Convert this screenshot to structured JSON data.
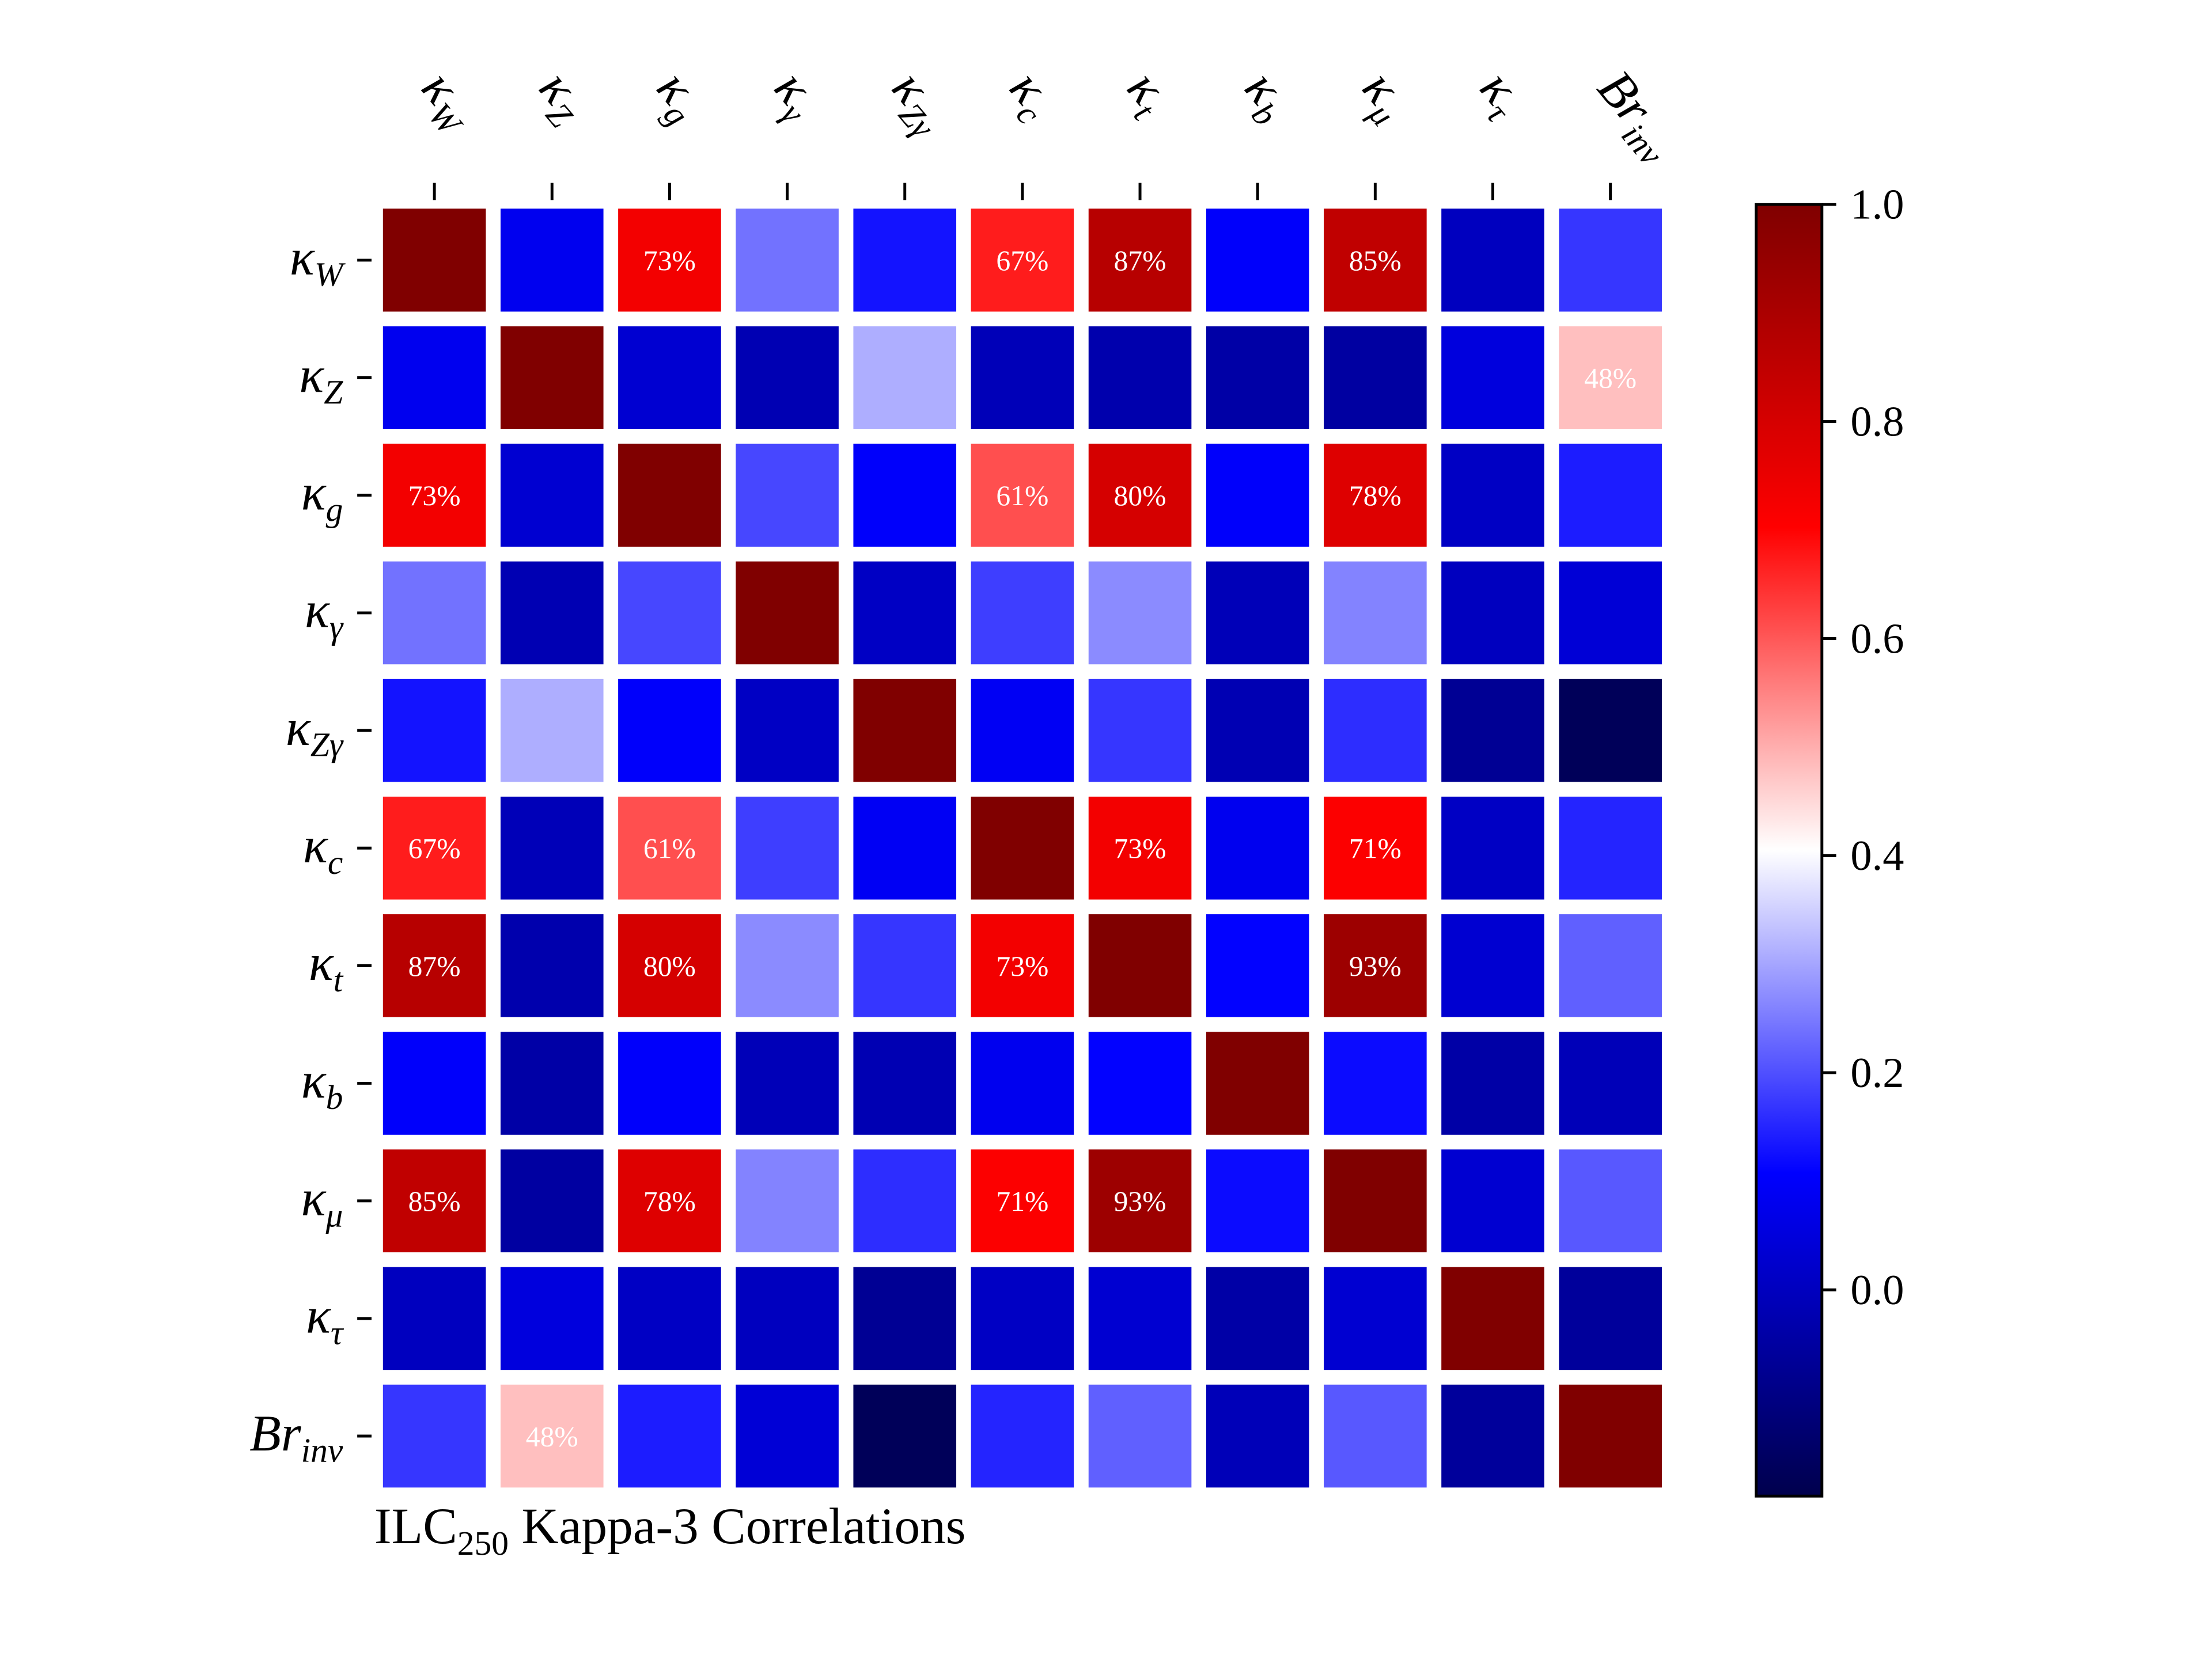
{
  "chart_data": {
    "type": "heatmap",
    "title": {
      "main": "ILC",
      "sub": "250",
      "rest": " Kappa-3 Correlations"
    },
    "categories": [
      {
        "main": "κ",
        "sub": "W"
      },
      {
        "main": "κ",
        "sub": "Z"
      },
      {
        "main": "κ",
        "sub": "g"
      },
      {
        "main": "κ",
        "sub": "γ"
      },
      {
        "main": "κ",
        "sub": "Zγ"
      },
      {
        "main": "κ",
        "sub": "c"
      },
      {
        "main": "κ",
        "sub": "t"
      },
      {
        "main": "κ",
        "sub": "b"
      },
      {
        "main": "κ",
        "sub": "μ"
      },
      {
        "main": "κ",
        "sub": "τ"
      },
      {
        "main": "Br",
        "sub": "inv"
      }
    ],
    "values": [
      [
        1,
        0.08,
        0.73,
        0.24,
        0.13,
        0.67,
        0.87,
        0.1,
        0.85,
        0.0,
        0.17
      ],
      [
        0.08,
        1,
        0.03,
        -0.02,
        0.31,
        -0.01,
        -0.03,
        -0.04,
        -0.05,
        0.05,
        0.48
      ],
      [
        0.73,
        0.03,
        1,
        0.19,
        0.1,
        0.61,
        0.8,
        0.1,
        0.78,
        0.01,
        0.14
      ],
      [
        0.24,
        -0.02,
        0.19,
        1,
        0.01,
        0.18,
        0.27,
        -0.01,
        0.26,
        0.0,
        0.04
      ],
      [
        0.13,
        0.31,
        0.1,
        0.01,
        1,
        0.09,
        0.17,
        -0.02,
        0.16,
        -0.07,
        -0.17
      ],
      [
        0.67,
        -0.01,
        0.61,
        0.18,
        0.09,
        1,
        0.73,
        0.08,
        0.71,
        0.01,
        0.15
      ],
      [
        0.87,
        -0.03,
        0.8,
        0.27,
        0.17,
        0.73,
        1,
        0.11,
        0.93,
        0.03,
        0.22
      ],
      [
        0.1,
        -0.04,
        0.1,
        -0.01,
        -0.02,
        0.08,
        0.11,
        1,
        0.12,
        -0.04,
        -0.01
      ],
      [
        0.85,
        -0.05,
        0.78,
        0.26,
        0.16,
        0.71,
        0.93,
        0.12,
        1,
        0.03,
        0.21
      ],
      [
        0.0,
        0.05,
        0.01,
        0.0,
        -0.07,
        0.01,
        0.03,
        -0.04,
        0.03,
        1,
        -0.06
      ],
      [
        0.17,
        0.48,
        0.14,
        0.04,
        -0.17,
        0.15,
        0.22,
        -0.01,
        0.21,
        -0.06,
        1
      ]
    ],
    "value_labels": [
      [
        null,
        null,
        "73%",
        null,
        null,
        "67%",
        "87%",
        null,
        "85%",
        null,
        null
      ],
      [
        null,
        null,
        null,
        null,
        null,
        null,
        null,
        null,
        null,
        null,
        "48%"
      ],
      [
        "73%",
        null,
        null,
        null,
        null,
        "61%",
        "80%",
        null,
        "78%",
        null,
        null
      ],
      [
        null,
        null,
        null,
        null,
        null,
        null,
        null,
        null,
        null,
        null,
        null
      ],
      [
        null,
        null,
        null,
        null,
        null,
        null,
        null,
        null,
        null,
        null,
        null
      ],
      [
        "67%",
        null,
        "61%",
        null,
        null,
        null,
        "73%",
        null,
        "71%",
        null,
        null
      ],
      [
        "87%",
        null,
        "80%",
        null,
        null,
        "73%",
        null,
        null,
        "93%",
        null,
        null
      ],
      [
        null,
        null,
        null,
        null,
        null,
        null,
        null,
        null,
        null,
        null,
        null
      ],
      [
        "85%",
        null,
        "78%",
        null,
        null,
        "71%",
        "93%",
        null,
        null,
        null,
        null
      ],
      [
        null,
        null,
        null,
        null,
        null,
        null,
        null,
        null,
        null,
        null,
        null
      ],
      [
        null,
        "48%",
        null,
        null,
        null,
        null,
        null,
        null,
        null,
        null,
        null
      ]
    ],
    "colormap": "seismic",
    "clim": [
      -0.19,
      1.0
    ],
    "cticks": [
      {
        "value": 0.0,
        "label": "0.0"
      },
      0.2,
      0.4,
      0.6,
      0.8,
      {
        "value": 1.0,
        "label": "1.0"
      }
    ]
  }
}
